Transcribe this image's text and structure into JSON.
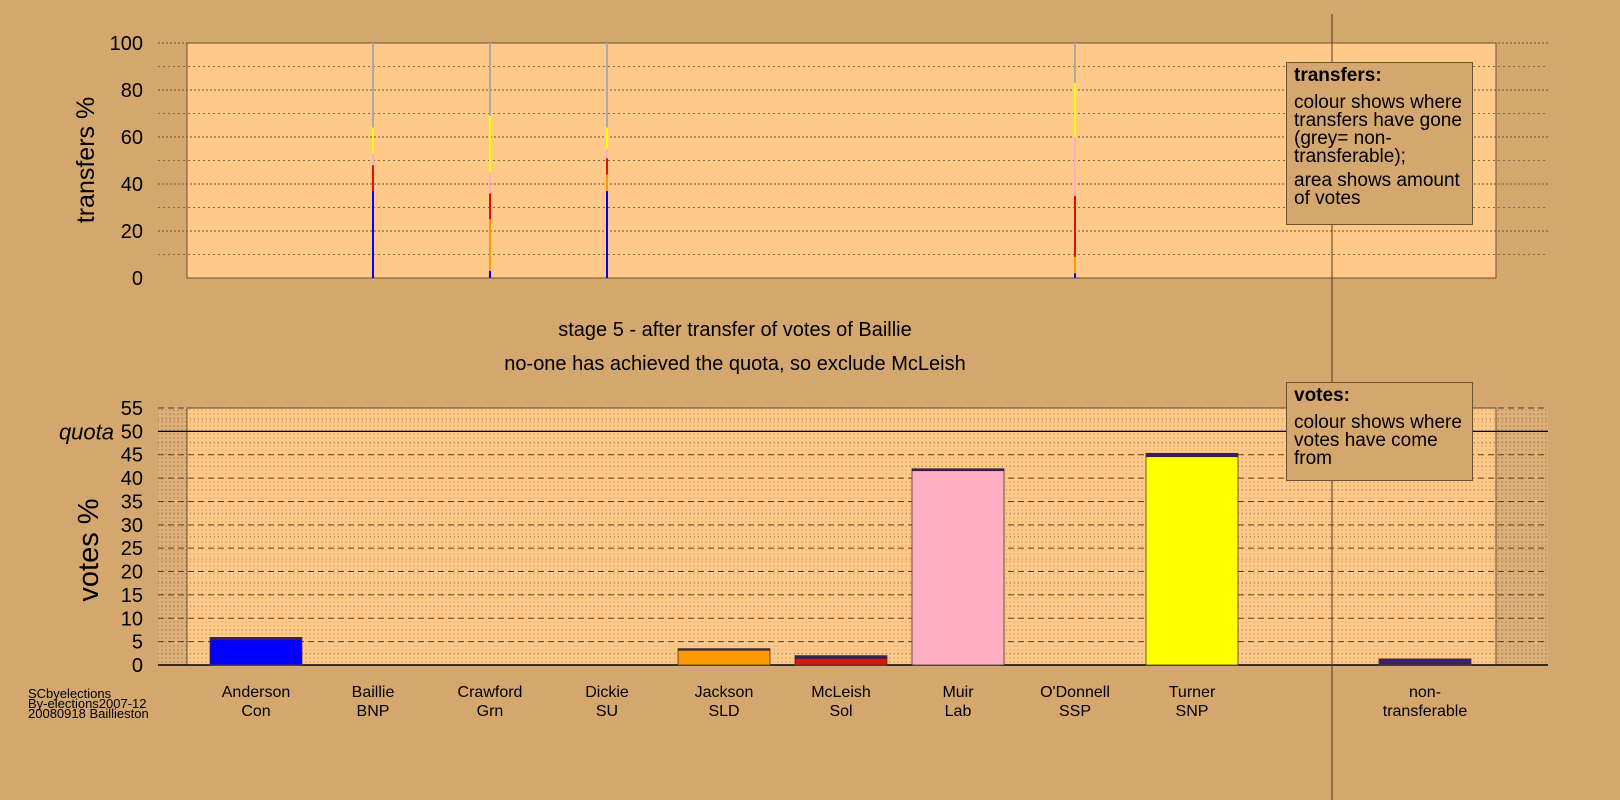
{
  "stage_title": "stage 5 - after transfer of votes of Baillie",
  "stage_subtitle": "no-one has achieved the quota, so exclude McLeish",
  "legend_transfers": {
    "title": "transfers:",
    "text1": "colour shows where transfers have gone (grey= non-transferable);",
    "text2": "area shows amount of votes"
  },
  "legend_votes": {
    "title": "votes:",
    "text": "colour shows where votes have come from"
  },
  "footer": {
    "line1": "SCbyelections",
    "line2": "By-elections2007-12",
    "line3": "20080918 Baillieston"
  },
  "colors": {
    "background": "#d4a76f",
    "plot": "#ffc98a",
    "Con": "#0000ff",
    "BNP": "#3a1f6e",
    "Grn": "#33cc33",
    "SU": "#6a3d9a",
    "SLD": "#ff9900",
    "Sol": "#e01010",
    "Lab": "#ffafc4",
    "SSP": "#ff3300",
    "SNP": "#ffff00",
    "nontransferable": "#aaaaaa"
  },
  "chart_data": [
    {
      "type": "bar",
      "name": "transfers",
      "ylabel": "transfers %",
      "ylim": [
        0,
        100
      ],
      "yticks": [
        0,
        20,
        40,
        60,
        80,
        100
      ],
      "grid": true,
      "columns": [
        {
          "candidate": "Baillie",
          "segments": [
            {
              "party": "Con",
              "from": 0,
              "to": 37
            },
            {
              "party": "Sol",
              "from": 37,
              "to": 48
            },
            {
              "party": "Lab",
              "from": 48,
              "to": 53
            },
            {
              "party": "SNP",
              "from": 53,
              "to": 64
            },
            {
              "party": "nontransferable",
              "from": 64,
              "to": 100
            }
          ]
        },
        {
          "candidate": "Crawford",
          "segments": [
            {
              "party": "Con",
              "from": 0,
              "to": 3
            },
            {
              "party": "SLD",
              "from": 3,
              "to": 25
            },
            {
              "party": "Sol",
              "from": 25,
              "to": 36
            },
            {
              "party": "Lab",
              "from": 36,
              "to": 45
            },
            {
              "party": "SNP",
              "from": 45,
              "to": 69
            },
            {
              "party": "nontransferable",
              "from": 69,
              "to": 100
            }
          ]
        },
        {
          "candidate": "Dickie",
          "segments": [
            {
              "party": "Con",
              "from": 0,
              "to": 37
            },
            {
              "party": "SLD",
              "from": 37,
              "to": 44
            },
            {
              "party": "Sol",
              "from": 44,
              "to": 51
            },
            {
              "party": "Lab",
              "from": 51,
              "to": 55
            },
            {
              "party": "SNP",
              "from": 55,
              "to": 64
            },
            {
              "party": "nontransferable",
              "from": 64,
              "to": 100
            }
          ]
        },
        {
          "candidate": "O'Donnell",
          "segments": [
            {
              "party": "Con",
              "from": 0,
              "to": 2
            },
            {
              "party": "SLD",
              "from": 2,
              "to": 9
            },
            {
              "party": "Sol",
              "from": 9,
              "to": 35
            },
            {
              "party": "Lab",
              "from": 35,
              "to": 60
            },
            {
              "party": "SNP",
              "from": 60,
              "to": 83
            },
            {
              "party": "nontransferable",
              "from": 83,
              "to": 100
            }
          ]
        }
      ]
    },
    {
      "type": "bar",
      "name": "votes",
      "ylabel": "votes %",
      "ylim": [
        0,
        55
      ],
      "yticks": [
        0,
        5,
        10,
        15,
        20,
        25,
        30,
        35,
        40,
        45,
        50,
        55
      ],
      "quota": 50,
      "quota_label": "quota",
      "grid": true,
      "categories": [
        {
          "name": "Anderson",
          "party": "Con",
          "value": 5.9,
          "transferred": 0.6
        },
        {
          "name": "Baillie",
          "party": "BNP",
          "value": 0,
          "transferred": 0
        },
        {
          "name": "Crawford",
          "party": "Grn",
          "value": 0,
          "transferred": 0
        },
        {
          "name": "Dickie",
          "party": "SU",
          "value": 0,
          "transferred": 0
        },
        {
          "name": "Jackson",
          "party": "SLD",
          "value": 3.5,
          "transferred": 0.4
        },
        {
          "name": "McLeish",
          "party": "Sol",
          "value": 2.0,
          "transferred": 0.7
        },
        {
          "name": "Muir",
          "party": "Lab",
          "value": 42.0,
          "transferred": 0.5
        },
        {
          "name": "O'Donnell",
          "party": "SSP",
          "value": 0,
          "transferred": 0
        },
        {
          "name": "Turner",
          "party": "SNP",
          "value": 45.3,
          "transferred": 0.8
        },
        {
          "name": "non-",
          "name2": "transferable",
          "party": "",
          "value": 1.3,
          "transferred": 0
        }
      ]
    }
  ]
}
